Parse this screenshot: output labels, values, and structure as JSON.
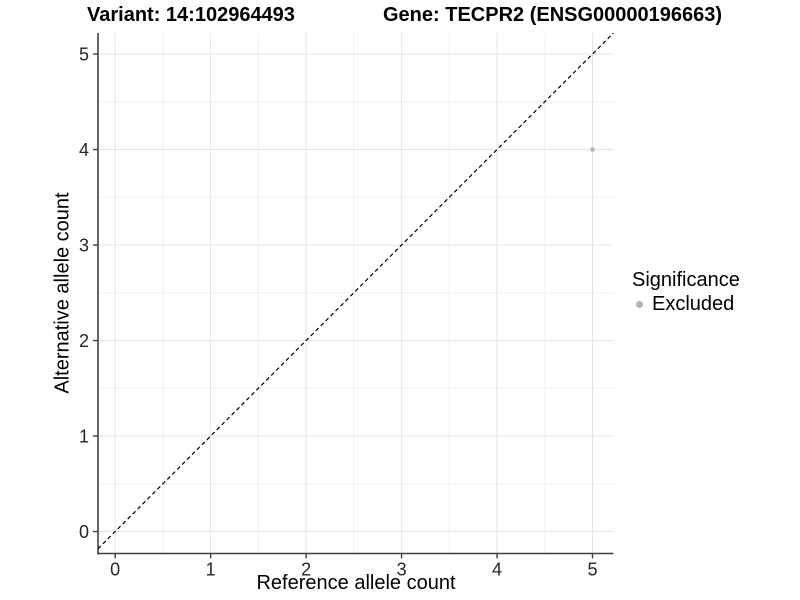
{
  "chart_data": {
    "type": "scatter",
    "title_left": "Variant: 14:102964493",
    "title_right": "Gene: TECPR2 (ENSG00000196663)",
    "xlabel": "Reference allele count",
    "ylabel": "Alternative allele count",
    "xlim": [
      -0.18,
      5.22
    ],
    "ylim": [
      -0.23,
      5.22
    ],
    "xticks": [
      0,
      1,
      2,
      3,
      4,
      5
    ],
    "yticks": [
      0,
      1,
      2,
      3,
      4,
      5
    ],
    "grid": {
      "major": true,
      "minor": true
    },
    "legend_position": "right",
    "series": [
      {
        "name": "Excluded",
        "color": "#b3b3b3",
        "marker": "circle",
        "points": [
          [
            5,
            4
          ]
        ]
      }
    ],
    "reference_line": {
      "label": "identity-line",
      "slope": 1,
      "intercept": 0,
      "style": "dashed",
      "color": "#000000"
    },
    "legend": {
      "title": "Significance",
      "entries": [
        {
          "label": "Excluded",
          "color": "#b3b3b3",
          "marker": "circle"
        }
      ]
    }
  },
  "colors": {
    "background": "#ffffff",
    "grid_major": "#e4e4e4",
    "grid_minor": "#f0f0f0",
    "axis_line": "#404040",
    "tick_label": "#262626",
    "point": "#b3b3b3"
  }
}
